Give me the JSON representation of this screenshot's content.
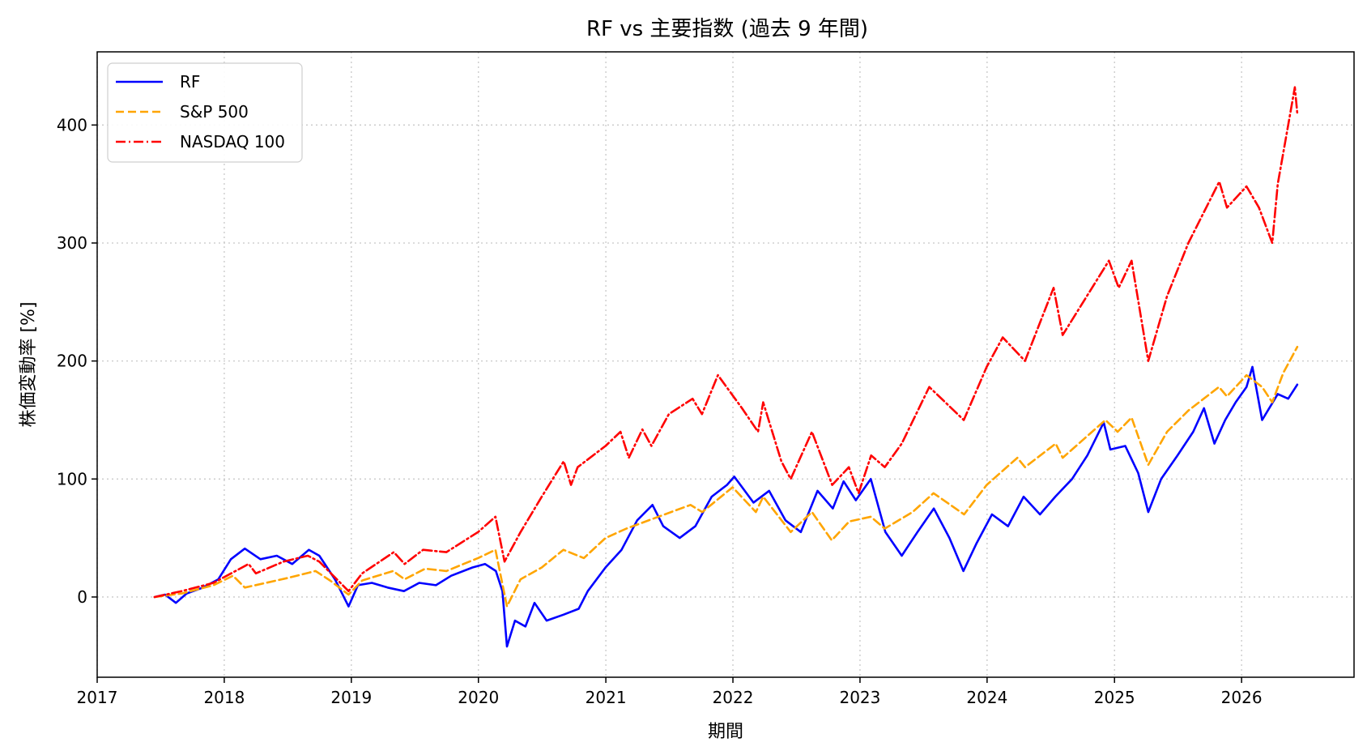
{
  "chart_data": {
    "type": "line",
    "title": "RF vs 主要指数 (過去 9 年間)",
    "xlabel": "期間",
    "ylabel": "株価変動率 [%]",
    "xlim": [
      "2017-01-01",
      "2026-11-20"
    ],
    "ylim": [
      -68,
      462
    ],
    "x_ticks": [
      "2017",
      "2018",
      "2019",
      "2020",
      "2021",
      "2022",
      "2023",
      "2024",
      "2025",
      "2026"
    ],
    "y_ticks": [
      0,
      100,
      200,
      300,
      400
    ],
    "grid": true,
    "legend_position": "top-left",
    "series": [
      {
        "name": "RF",
        "color": "#0000ff",
        "style": "solid",
        "points": [
          [
            "2017-06-15",
            0
          ],
          [
            "2017-07-15",
            2
          ],
          [
            "2017-08-15",
            -5
          ],
          [
            "2017-09-15",
            3
          ],
          [
            "2017-11-01",
            8
          ],
          [
            "2017-12-15",
            15
          ],
          [
            "2018-01-20",
            32
          ],
          [
            "2018-03-01",
            41
          ],
          [
            "2018-04-15",
            32
          ],
          [
            "2018-06-01",
            35
          ],
          [
            "2018-07-15",
            28
          ],
          [
            "2018-09-01",
            40
          ],
          [
            "2018-10-01",
            35
          ],
          [
            "2018-11-15",
            15
          ],
          [
            "2018-12-24",
            -8
          ],
          [
            "2019-01-20",
            10
          ],
          [
            "2019-03-01",
            12
          ],
          [
            "2019-04-15",
            8
          ],
          [
            "2019-06-01",
            5
          ],
          [
            "2019-07-15",
            12
          ],
          [
            "2019-09-01",
            10
          ],
          [
            "2019-10-15",
            18
          ],
          [
            "2019-12-15",
            25
          ],
          [
            "2020-01-20",
            28
          ],
          [
            "2020-02-20",
            22
          ],
          [
            "2020-03-10",
            5
          ],
          [
            "2020-03-23",
            -42
          ],
          [
            "2020-04-15",
            -20
          ],
          [
            "2020-05-15",
            -25
          ],
          [
            "2020-06-10",
            -5
          ],
          [
            "2020-07-15",
            -20
          ],
          [
            "2020-09-01",
            -15
          ],
          [
            "2020-10-15",
            -10
          ],
          [
            "2020-11-10",
            5
          ],
          [
            "2020-12-31",
            25
          ],
          [
            "2021-02-15",
            40
          ],
          [
            "2021-04-01",
            65
          ],
          [
            "2021-05-15",
            78
          ],
          [
            "2021-06-15",
            60
          ],
          [
            "2021-08-01",
            50
          ],
          [
            "2021-09-15",
            60
          ],
          [
            "2021-11-01",
            85
          ],
          [
            "2021-12-15",
            95
          ],
          [
            "2022-01-05",
            102
          ],
          [
            "2022-03-01",
            80
          ],
          [
            "2022-04-15",
            90
          ],
          [
            "2022-06-01",
            65
          ],
          [
            "2022-07-15",
            55
          ],
          [
            "2022-09-01",
            90
          ],
          [
            "2022-10-15",
            75
          ],
          [
            "2022-11-15",
            98
          ],
          [
            "2022-12-20",
            82
          ],
          [
            "2023-02-01",
            100
          ],
          [
            "2023-03-15",
            55
          ],
          [
            "2023-05-01",
            35
          ],
          [
            "2023-06-15",
            55
          ],
          [
            "2023-08-01",
            75
          ],
          [
            "2023-09-15",
            50
          ],
          [
            "2023-10-25",
            22
          ],
          [
            "2023-12-01",
            45
          ],
          [
            "2024-01-15",
            70
          ],
          [
            "2024-03-01",
            60
          ],
          [
            "2024-04-15",
            85
          ],
          [
            "2024-06-01",
            70
          ],
          [
            "2024-07-15",
            85
          ],
          [
            "2024-09-01",
            100
          ],
          [
            "2024-10-15",
            120
          ],
          [
            "2024-12-01",
            148
          ],
          [
            "2024-12-20",
            125
          ],
          [
            "2025-02-01",
            128
          ],
          [
            "2025-03-10",
            105
          ],
          [
            "2025-04-08",
            72
          ],
          [
            "2025-05-15",
            100
          ],
          [
            "2025-07-01",
            120
          ],
          [
            "2025-08-15",
            140
          ],
          [
            "2025-09-15",
            160
          ],
          [
            "2025-10-15",
            130
          ],
          [
            "2025-11-15",
            150
          ],
          [
            "2025-12-15",
            165
          ],
          [
            "2026-01-15",
            178
          ],
          [
            "2026-02-01",
            195
          ],
          [
            "2026-03-01",
            150
          ],
          [
            "2026-04-15",
            172
          ],
          [
            "2026-05-15",
            168
          ],
          [
            "2026-06-10",
            180
          ]
        ]
      },
      {
        "name": "S&P 500",
        "color": "#ffa500",
        "style": "dashed",
        "points": [
          [
            "2017-06-15",
            0
          ],
          [
            "2017-09-01",
            3
          ],
          [
            "2017-12-01",
            10
          ],
          [
            "2018-01-26",
            18
          ],
          [
            "2018-03-01",
            8
          ],
          [
            "2018-05-01",
            12
          ],
          [
            "2018-07-01",
            16
          ],
          [
            "2018-09-20",
            22
          ],
          [
            "2018-11-01",
            14
          ],
          [
            "2018-12-24",
            2
          ],
          [
            "2019-02-01",
            14
          ],
          [
            "2019-05-01",
            22
          ],
          [
            "2019-06-03",
            15
          ],
          [
            "2019-08-01",
            24
          ],
          [
            "2019-10-01",
            22
          ],
          [
            "2019-12-31",
            33
          ],
          [
            "2020-02-19",
            40
          ],
          [
            "2020-03-23",
            -8
          ],
          [
            "2020-05-01",
            15
          ],
          [
            "2020-07-01",
            25
          ],
          [
            "2020-09-01",
            40
          ],
          [
            "2020-10-30",
            33
          ],
          [
            "2020-12-31",
            50
          ],
          [
            "2021-03-01",
            58
          ],
          [
            "2021-06-01",
            68
          ],
          [
            "2021-09-01",
            78
          ],
          [
            "2021-10-05",
            72
          ],
          [
            "2021-12-31",
            93
          ],
          [
            "2022-03-08",
            72
          ],
          [
            "2022-03-29",
            85
          ],
          [
            "2022-06-16",
            55
          ],
          [
            "2022-08-16",
            72
          ],
          [
            "2022-10-12",
            48
          ],
          [
            "2022-12-01",
            64
          ],
          [
            "2023-02-01",
            68
          ],
          [
            "2023-03-13",
            58
          ],
          [
            "2023-06-01",
            72
          ],
          [
            "2023-07-31",
            88
          ],
          [
            "2023-10-27",
            70
          ],
          [
            "2023-12-31",
            95
          ],
          [
            "2024-03-28",
            118
          ],
          [
            "2024-04-19",
            110
          ],
          [
            "2024-07-16",
            130
          ],
          [
            "2024-08-05",
            118
          ],
          [
            "2024-12-06",
            150
          ],
          [
            "2025-01-10",
            140
          ],
          [
            "2025-02-19",
            152
          ],
          [
            "2025-04-08",
            112
          ],
          [
            "2025-06-01",
            140
          ],
          [
            "2025-08-01",
            158
          ],
          [
            "2025-10-28",
            178
          ],
          [
            "2025-11-20",
            170
          ],
          [
            "2026-01-15",
            188
          ],
          [
            "2026-03-01",
            178
          ],
          [
            "2026-03-30",
            165
          ],
          [
            "2026-05-01",
            190
          ],
          [
            "2026-06-10",
            212
          ]
        ]
      },
      {
        "name": "NASDAQ 100",
        "color": "#ff0000",
        "style": "dashdot",
        "points": [
          [
            "2017-06-15",
            0
          ],
          [
            "2017-09-01",
            5
          ],
          [
            "2017-12-01",
            12
          ],
          [
            "2018-03-12",
            28
          ],
          [
            "2018-04-02",
            20
          ],
          [
            "2018-06-20",
            30
          ],
          [
            "2018-08-29",
            35
          ],
          [
            "2018-10-01",
            30
          ],
          [
            "2018-12-24",
            5
          ],
          [
            "2019-02-01",
            20
          ],
          [
            "2019-05-03",
            38
          ],
          [
            "2019-06-03",
            28
          ],
          [
            "2019-07-26",
            40
          ],
          [
            "2019-10-01",
            38
          ],
          [
            "2019-12-31",
            55
          ],
          [
            "2020-02-19",
            68
          ],
          [
            "2020-03-16",
            30
          ],
          [
            "2020-05-01",
            55
          ],
          [
            "2020-07-01",
            85
          ],
          [
            "2020-09-02",
            115
          ],
          [
            "2020-09-23",
            95
          ],
          [
            "2020-10-12",
            110
          ],
          [
            "2020-12-31",
            128
          ],
          [
            "2021-02-12",
            140
          ],
          [
            "2021-03-08",
            118
          ],
          [
            "2021-04-16",
            142
          ],
          [
            "2021-05-12",
            128
          ],
          [
            "2021-07-01",
            155
          ],
          [
            "2021-09-07",
            168
          ],
          [
            "2021-10-04",
            155
          ],
          [
            "2021-11-19",
            188
          ],
          [
            "2022-01-27",
            160
          ],
          [
            "2022-03-14",
            140
          ],
          [
            "2022-03-29",
            165
          ],
          [
            "2022-05-20",
            115
          ],
          [
            "2022-06-16",
            100
          ],
          [
            "2022-08-16",
            140
          ],
          [
            "2022-10-13",
            95
          ],
          [
            "2022-11-30",
            110
          ],
          [
            "2022-12-28",
            88
          ],
          [
            "2023-02-02",
            120
          ],
          [
            "2023-03-13",
            110
          ],
          [
            "2023-05-01",
            130
          ],
          [
            "2023-07-19",
            178
          ],
          [
            "2023-10-26",
            150
          ],
          [
            "2023-12-31",
            195
          ],
          [
            "2024-02-15",
            220
          ],
          [
            "2024-04-19",
            200
          ],
          [
            "2024-07-10",
            262
          ],
          [
            "2024-08-05",
            222
          ],
          [
            "2024-12-16",
            285
          ],
          [
            "2025-01-13",
            262
          ],
          [
            "2025-02-19",
            285
          ],
          [
            "2025-04-08",
            200
          ],
          [
            "2025-06-01",
            255
          ],
          [
            "2025-08-01",
            300
          ],
          [
            "2025-10-29",
            352
          ],
          [
            "2025-11-20",
            330
          ],
          [
            "2026-01-15",
            348
          ],
          [
            "2026-02-20",
            330
          ],
          [
            "2026-03-30",
            300
          ],
          [
            "2026-04-15",
            350
          ],
          [
            "2026-05-15",
            400
          ],
          [
            "2026-06-03",
            432
          ],
          [
            "2026-06-10",
            410
          ]
        ]
      }
    ]
  }
}
